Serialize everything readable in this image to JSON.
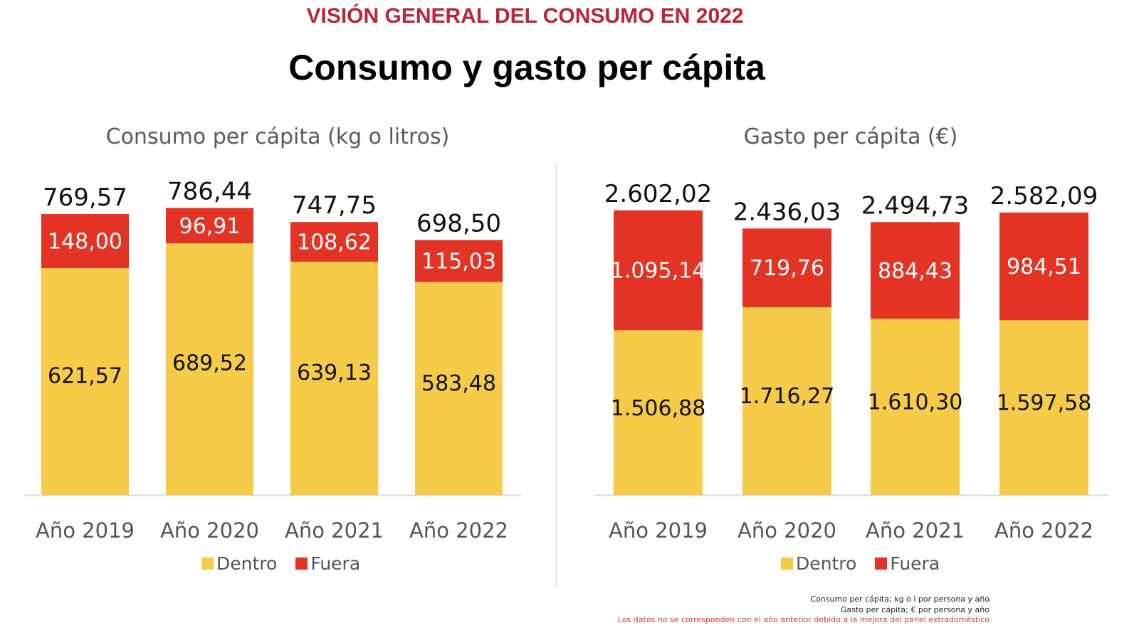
{
  "header": {
    "kicker": "VISIÓN GENERAL DEL CONSUMO EN 2022",
    "title": "Consumo y gasto per cápita"
  },
  "colors": {
    "dentro": "#f5cb47",
    "fuera": "#e33325",
    "kicker": "#b8263a"
  },
  "legend": {
    "dentro": "Dentro",
    "fuera": "Fuera"
  },
  "footer": {
    "line1": "Consumo per cápita; kg o l por persona y año",
    "line2": "Gasto per cápita; € por persona y año",
    "line3": "Los datos no se corresponden con el año anterior debido a la mejora del panel extradoméstico"
  },
  "chart_data": [
    {
      "type": "bar",
      "stacked": true,
      "title": "Consumo per cápita (kg o litros)",
      "categories": [
        "Año 2019",
        "Año 2020",
        "Año 2021",
        "Año 2022"
      ],
      "series": [
        {
          "name": "Dentro",
          "values": [
            621.57,
            689.52,
            639.13,
            583.48
          ],
          "labels": [
            "621,57",
            "689,52",
            "639,13",
            "583,48"
          ]
        },
        {
          "name": "Fuera",
          "values": [
            148.0,
            96.91,
            108.62,
            115.03
          ],
          "labels": [
            "148,00",
            "96,91",
            "108,62",
            "115,03"
          ]
        }
      ],
      "totals": [
        769.57,
        786.44,
        747.75,
        698.5
      ],
      "total_labels": [
        "769,57",
        "786,44",
        "747,75",
        "698,50"
      ],
      "ylim": [
        0,
        908
      ],
      "grid": false,
      "legend": "bottom"
    },
    {
      "type": "bar",
      "stacked": true,
      "title": "Gasto per cápita (€)",
      "categories": [
        "Año 2019",
        "Año 2020",
        "Año 2021",
        "Año 2022"
      ],
      "series": [
        {
          "name": "Dentro",
          "values": [
            1506.88,
            1716.27,
            1610.3,
            1597.58
          ],
          "labels": [
            "1.506,88",
            "1.716,27",
            "1.610,30",
            "1.597,58"
          ]
        },
        {
          "name": "Fuera",
          "values": [
            1095.14,
            719.76,
            884.43,
            984.51
          ],
          "labels": [
            "1.095,14",
            "719,76",
            "884,43",
            "984,51"
          ]
        }
      ],
      "totals": [
        2602.02,
        2436.03,
        2494.73,
        2582.09
      ],
      "total_labels": [
        "2.602,02",
        "2.436,03",
        "2.494,73",
        "2.582,09"
      ],
      "ylim": [
        0,
        3030
      ],
      "grid": false,
      "legend": "bottom"
    }
  ]
}
